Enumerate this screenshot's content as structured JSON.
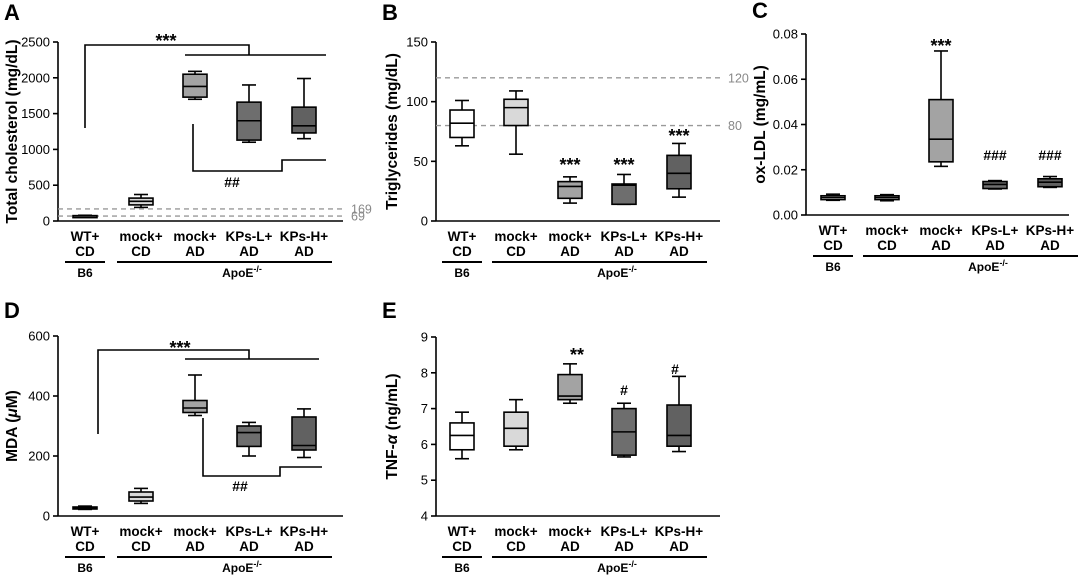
{
  "colors": {
    "box_fills": [
      "#ffffff",
      "#d9d9d9",
      "#a3a3a3",
      "#6e6e6e",
      "#616161"
    ],
    "ref_line": "#999999"
  },
  "groups": {
    "left": "B6",
    "right": "ApoE-/-",
    "right_main": "ApoE",
    "right_sup": "-/-"
  },
  "chart_data": [
    {
      "panel": "A",
      "type": "box",
      "ylabel": "Total cholesterol (mg/dL)",
      "ylim": [
        0,
        2500
      ],
      "yticks": [
        "0",
        "500",
        "1000",
        "1500",
        "2000",
        "2500"
      ],
      "categories": [
        [
          "WT+",
          "CD"
        ],
        [
          "mock+",
          "CD"
        ],
        [
          "mock+",
          "AD"
        ],
        [
          "KPs-L+",
          "AD"
        ],
        [
          "KPs-H+",
          "AD"
        ]
      ],
      "boxes": [
        {
          "min": 60,
          "q1": 65,
          "median": 70,
          "q3": 75,
          "max": 80
        },
        {
          "min": 190,
          "q1": 225,
          "median": 275,
          "q3": 320,
          "max": 370
        },
        {
          "min": 1700,
          "q1": 1730,
          "median": 1880,
          "q3": 2050,
          "max": 2090
        },
        {
          "min": 1100,
          "q1": 1130,
          "median": 1400,
          "q3": 1660,
          "max": 1900
        },
        {
          "min": 1150,
          "q1": 1230,
          "median": 1330,
          "q3": 1590,
          "max": 1990
        }
      ],
      "ref_lines": [
        {
          "value": 169,
          "label": "169"
        },
        {
          "value": 69,
          "label": "69"
        }
      ],
      "annotations": [
        "***",
        "##"
      ]
    },
    {
      "panel": "B",
      "type": "box",
      "ylabel": "Triglycerides (mg/dL)",
      "ylim": [
        0,
        150
      ],
      "yticks": [
        "0",
        "50",
        "100",
        "150"
      ],
      "categories": [
        [
          "WT+",
          "CD"
        ],
        [
          "mock+",
          "CD"
        ],
        [
          "mock+",
          "AD"
        ],
        [
          "KPs-L+",
          "AD"
        ],
        [
          "KPs-H+",
          "AD"
        ]
      ],
      "boxes": [
        {
          "min": 63,
          "q1": 70,
          "median": 82,
          "q3": 93,
          "max": 101
        },
        {
          "min": 56,
          "q1": 80,
          "median": 95,
          "q3": 102,
          "max": 109
        },
        {
          "min": 15,
          "q1": 19,
          "median": 29,
          "q3": 33,
          "max": 37
        },
        {
          "min": 14,
          "q1": 14,
          "median": 30,
          "q3": 31,
          "max": 39
        },
        {
          "min": 20,
          "q1": 27,
          "median": 40,
          "q3": 55,
          "max": 65
        }
      ],
      "ref_lines": [
        {
          "value": 120,
          "label": "120"
        },
        {
          "value": 80,
          "label": "80"
        }
      ],
      "annotations": [
        "***",
        "***",
        "***"
      ]
    },
    {
      "panel": "C",
      "type": "box",
      "ylabel": "ox-LDL (mg/mL)",
      "ylim": [
        0,
        0.08
      ],
      "yticks": [
        "0.00",
        "0.02",
        "0.04",
        "0.06",
        "0.08"
      ],
      "categories": [
        [
          "WT+",
          "CD"
        ],
        [
          "mock+",
          "CD"
        ],
        [
          "mock+",
          "AD"
        ],
        [
          "KPs-L+",
          "AD"
        ],
        [
          "KPs-H+",
          "AD"
        ]
      ],
      "boxes": [
        {
          "min": 0.0065,
          "q1": 0.0068,
          "median": 0.0077,
          "q3": 0.0085,
          "max": 0.0092
        },
        {
          "min": 0.0063,
          "q1": 0.0068,
          "median": 0.0077,
          "q3": 0.0085,
          "max": 0.009
        },
        {
          "min": 0.0215,
          "q1": 0.0235,
          "median": 0.0335,
          "q3": 0.051,
          "max": 0.0725
        },
        {
          "min": 0.0115,
          "q1": 0.0117,
          "median": 0.0135,
          "q3": 0.0148,
          "max": 0.0152
        },
        {
          "min": 0.0122,
          "q1": 0.0125,
          "median": 0.0145,
          "q3": 0.016,
          "max": 0.017
        }
      ],
      "ref_lines": [],
      "annotations": [
        "***",
        "###",
        "###"
      ]
    },
    {
      "panel": "D",
      "type": "box",
      "ylabel": "MDA (μM)",
      "ylabel_main": "MDA (",
      "ylabel_symbol": "μ",
      "ylabel_end": "M)",
      "ylim": [
        0,
        600
      ],
      "yticks": [
        "0",
        "200",
        "400",
        "600"
      ],
      "categories": [
        [
          "WT+",
          "CD"
        ],
        [
          "mock+",
          "CD"
        ],
        [
          "mock+",
          "AD"
        ],
        [
          "KPs-L+",
          "AD"
        ],
        [
          "KPs-H+",
          "AD"
        ]
      ],
      "boxes": [
        {
          "min": 22,
          "q1": 24,
          "median": 27,
          "q3": 30,
          "max": 33
        },
        {
          "min": 42,
          "q1": 50,
          "median": 63,
          "q3": 80,
          "max": 92
        },
        {
          "min": 335,
          "q1": 345,
          "median": 360,
          "q3": 385,
          "max": 470
        },
        {
          "min": 200,
          "q1": 232,
          "median": 278,
          "q3": 300,
          "max": 312
        },
        {
          "min": 195,
          "q1": 220,
          "median": 235,
          "q3": 330,
          "max": 357
        }
      ],
      "ref_lines": [],
      "annotations": [
        "***",
        "##"
      ]
    },
    {
      "panel": "E",
      "type": "box",
      "ylabel": "TNF-α (ng/mL)",
      "ylabel_main": "TNF-",
      "ylabel_symbol": "α",
      "ylabel_end": " (ng/mL)",
      "ylim": [
        4,
        9
      ],
      "yticks": [
        "4",
        "5",
        "6",
        "7",
        "8",
        "9"
      ],
      "categories": [
        [
          "WT+",
          "CD"
        ],
        [
          "mock+",
          "CD"
        ],
        [
          "mock+",
          "AD"
        ],
        [
          "KPs-L+",
          "AD"
        ],
        [
          "KPs-H+",
          "AD"
        ]
      ],
      "boxes": [
        {
          "min": 5.6,
          "q1": 5.85,
          "median": 6.25,
          "q3": 6.6,
          "max": 6.9
        },
        {
          "min": 5.85,
          "q1": 5.95,
          "median": 6.45,
          "q3": 6.9,
          "max": 7.25
        },
        {
          "min": 7.15,
          "q1": 7.25,
          "median": 7.35,
          "q3": 7.95,
          "max": 8.25
        },
        {
          "min": 5.65,
          "q1": 5.7,
          "median": 6.35,
          "q3": 7.0,
          "max": 7.15
        },
        {
          "min": 5.8,
          "q1": 5.95,
          "median": 6.25,
          "q3": 7.1,
          "max": 7.9
        }
      ],
      "ref_lines": [],
      "annotations": [
        "**",
        "#",
        "#"
      ]
    }
  ]
}
